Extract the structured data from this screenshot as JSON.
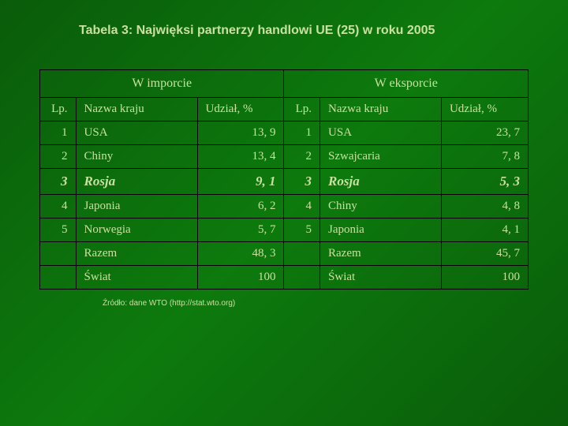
{
  "title": "Tabela 3: Najwięksi partnerzy handlowi UE (25) w roku 2005",
  "source": "Źródło: dane WTO (http://stat.wto.org)",
  "table": {
    "group_headers": [
      "W imporcie",
      "W eksporcie"
    ],
    "col_headers": {
      "lp": "Lp.",
      "name": "Nazwa kraju",
      "share": "Udział, %"
    },
    "highlight_row_index": 2,
    "left": [
      {
        "lp": "1",
        "name": "USA",
        "val": "13, 9"
      },
      {
        "lp": "2",
        "name": "Chiny",
        "val": "13, 4"
      },
      {
        "lp": "3",
        "name": "Rosja",
        "val": "9, 1"
      },
      {
        "lp": "4",
        "name": "Japonia",
        "val": "6, 2"
      },
      {
        "lp": "5",
        "name": "Norwegia",
        "val": "5, 7"
      },
      {
        "lp": "",
        "name": "Razem",
        "val": "48, 3"
      },
      {
        "lp": "",
        "name": "Świat",
        "val": "100"
      }
    ],
    "right": [
      {
        "lp": "1",
        "name": "USA",
        "val": "23, 7"
      },
      {
        "lp": "2",
        "name": "Szwajcaria",
        "val": "7, 8"
      },
      {
        "lp": "3",
        "name": "Rosja",
        "val": "5, 3"
      },
      {
        "lp": "4",
        "name": "Chiny",
        "val": "4, 8"
      },
      {
        "lp": "5",
        "name": "Japonia",
        "val": "4, 1"
      },
      {
        "lp": "",
        "name": "Razem",
        "val": "45, 7"
      },
      {
        "lp": "",
        "name": "Świat",
        "val": "100"
      }
    ]
  },
  "colors": {
    "text": "#c8e0a0",
    "border": "#000000",
    "bg_start": "#0a5c0a",
    "bg_mid": "#0d7a0d"
  }
}
